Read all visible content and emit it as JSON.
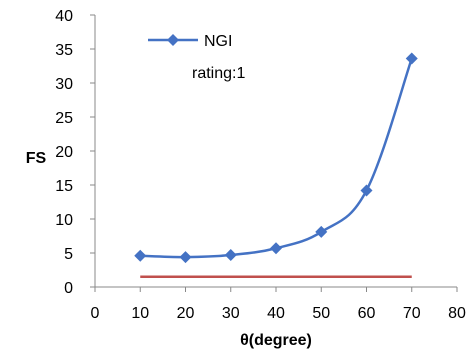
{
  "chart_data": {
    "type": "line",
    "xlabel": "θ(degree)",
    "ylabel": "FS",
    "xlim": [
      0,
      80
    ],
    "ylim": [
      0,
      40
    ],
    "x_ticks": [
      0,
      10,
      20,
      30,
      40,
      50,
      60,
      70,
      80
    ],
    "y_ticks": [
      0,
      5,
      10,
      15,
      20,
      25,
      30,
      35,
      40
    ],
    "grid": false,
    "legend_position": "top-left",
    "series": [
      {
        "name": "NGI",
        "color": "#4472C4",
        "marker": "diamond",
        "smooth": true,
        "x": [
          10,
          20,
          30,
          40,
          50,
          60,
          70
        ],
        "y": [
          4.6,
          4.4,
          4.7,
          5.7,
          8.1,
          14.2,
          33.6
        ]
      },
      {
        "name": "",
        "color": "#C0504D",
        "marker": "none",
        "x": [
          10,
          70
        ],
        "y": [
          1.5,
          1.5
        ]
      }
    ],
    "legend_extra_text": "rating:1"
  }
}
